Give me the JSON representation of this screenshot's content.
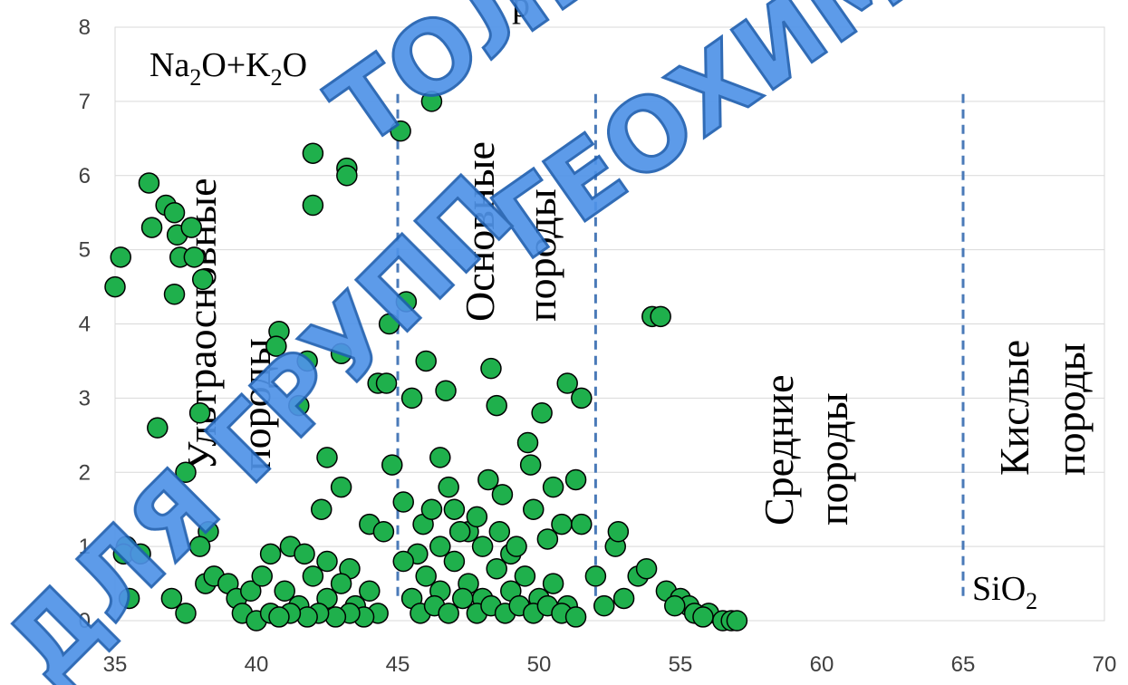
{
  "chart_data": {
    "type": "scatter",
    "title": "",
    "ylabel_main": "Na",
    "ylabel_sub1": "2",
    "ylabel_mid": "O+K",
    "ylabel_sub2": "2",
    "ylabel_end": "O",
    "xlabel_main": "SiO",
    "xlabel_sub": "2",
    "xlim": [
      35,
      70
    ],
    "ylim": [
      0,
      8
    ],
    "x_ticks": [
      35,
      40,
      45,
      50,
      55,
      60,
      65,
      70
    ],
    "y_ticks": [
      0,
      1,
      2,
      3,
      4,
      5,
      6,
      7,
      8
    ],
    "boundaries": [
      45,
      52,
      65
    ],
    "regions": [
      {
        "line1": "Ультраосновные",
        "line2": "породы"
      },
      {
        "line1": "Основные",
        "line2": "породы"
      },
      {
        "line1": "Средние",
        "line2": "породы"
      },
      {
        "line1": "Кислые",
        "line2": "породы"
      }
    ],
    "marker_color": "#1fb04c",
    "marker_edge": "#000000",
    "points": [
      [
        35.0,
        4.5
      ],
      [
        35.2,
        4.9
      ],
      [
        35.4,
        1.0
      ],
      [
        35.3,
        0.9
      ],
      [
        35.5,
        0.3
      ],
      [
        35.9,
        0.9
      ],
      [
        36.2,
        5.9
      ],
      [
        36.3,
        5.3
      ],
      [
        36.5,
        2.6
      ],
      [
        36.8,
        5.6
      ],
      [
        37.1,
        5.5
      ],
      [
        37.2,
        5.2
      ],
      [
        37.3,
        4.9
      ],
      [
        37.1,
        4.4
      ],
      [
        37.7,
        5.3
      ],
      [
        37.8,
        4.9
      ],
      [
        37.5,
        2.0
      ],
      [
        38.1,
        4.6
      ],
      [
        38.0,
        2.8
      ],
      [
        38.3,
        1.2
      ],
      [
        38.0,
        1.0
      ],
      [
        37.0,
        0.3
      ],
      [
        37.5,
        0.1
      ],
      [
        38.2,
        0.5
      ],
      [
        38.5,
        0.6
      ],
      [
        39.0,
        0.5
      ],
      [
        39.3,
        0.3
      ],
      [
        39.5,
        0.1
      ],
      [
        39.8,
        0.4
      ],
      [
        40.0,
        0.0
      ],
      [
        40.2,
        0.6
      ],
      [
        40.5,
        0.9
      ],
      [
        40.8,
        3.9
      ],
      [
        40.7,
        3.7
      ],
      [
        41.5,
        2.9
      ],
      [
        41.8,
        3.5
      ],
      [
        42.0,
        6.3
      ],
      [
        42.0,
        5.6
      ],
      [
        43.2,
        6.1
      ],
      [
        43.2,
        6.0
      ],
      [
        43.0,
        3.6
      ],
      [
        42.5,
        2.2
      ],
      [
        43.0,
        1.8
      ],
      [
        42.3,
        1.5
      ],
      [
        41.2,
        1.0
      ],
      [
        41.7,
        0.9
      ],
      [
        42.5,
        0.8
      ],
      [
        43.3,
        0.7
      ],
      [
        44.0,
        1.3
      ],
      [
        44.5,
        1.2
      ],
      [
        44.7,
        4.0
      ],
      [
        44.3,
        3.2
      ],
      [
        44.6,
        3.2
      ],
      [
        44.8,
        2.1
      ],
      [
        45.1,
        6.6
      ],
      [
        45.3,
        4.3
      ],
      [
        45.5,
        3.0
      ],
      [
        45.2,
        1.6
      ],
      [
        45.7,
        0.9
      ],
      [
        46.2,
        7.0
      ],
      [
        46.0,
        3.5
      ],
      [
        46.7,
        3.1
      ],
      [
        46.5,
        2.2
      ],
      [
        46.8,
        1.8
      ],
      [
        47.0,
        1.5
      ],
      [
        47.5,
        1.2
      ],
      [
        48.2,
        1.9
      ],
      [
        48.3,
        3.4
      ],
      [
        48.5,
        2.9
      ],
      [
        48.7,
        1.7
      ],
      [
        48.0,
        1.0
      ],
      [
        49.0,
        0.9
      ],
      [
        49.6,
        2.4
      ],
      [
        49.7,
        2.1
      ],
      [
        50.1,
        2.8
      ],
      [
        50.5,
        1.8
      ],
      [
        50.8,
        1.3
      ],
      [
        51.0,
        3.2
      ],
      [
        51.5,
        3.0
      ],
      [
        51.3,
        1.9
      ],
      [
        51.5,
        1.3
      ],
      [
        52.0,
        0.6
      ],
      [
        52.7,
        1.0
      ],
      [
        52.8,
        1.2
      ],
      [
        53.5,
        0.6
      ],
      [
        53.8,
        0.7
      ],
      [
        54.0,
        4.1
      ],
      [
        54.3,
        4.1
      ],
      [
        54.5,
        0.4
      ],
      [
        55.0,
        0.3
      ],
      [
        55.3,
        0.2
      ],
      [
        55.5,
        0.1
      ],
      [
        56.0,
        0.1
      ],
      [
        56.5,
        0.0
      ],
      [
        56.8,
        0.0
      ],
      [
        57.0,
        0.0
      ],
      [
        55.8,
        0.05
      ],
      [
        54.8,
        0.2
      ],
      [
        53.0,
        0.3
      ],
      [
        52.3,
        0.2
      ],
      [
        45.5,
        0.3
      ],
      [
        46.0,
        0.6
      ],
      [
        46.5,
        0.4
      ],
      [
        47.0,
        0.8
      ],
      [
        47.5,
        0.5
      ],
      [
        48.0,
        0.3
      ],
      [
        48.5,
        0.7
      ],
      [
        49.0,
        0.4
      ],
      [
        49.5,
        0.6
      ],
      [
        50.0,
        0.3
      ],
      [
        50.5,
        0.5
      ],
      [
        51.0,
        0.2
      ],
      [
        44.0,
        0.4
      ],
      [
        43.5,
        0.2
      ],
      [
        43.0,
        0.5
      ],
      [
        42.5,
        0.3
      ],
      [
        42.0,
        0.6
      ],
      [
        41.5,
        0.2
      ],
      [
        41.0,
        0.4
      ],
      [
        40.5,
        0.1
      ],
      [
        45.8,
        0.1
      ],
      [
        46.3,
        0.2
      ],
      [
        46.8,
        0.1
      ],
      [
        47.3,
        0.3
      ],
      [
        47.8,
        0.1
      ],
      [
        48.3,
        0.2
      ],
      [
        48.8,
        0.1
      ],
      [
        49.3,
        0.2
      ],
      [
        49.8,
        0.1
      ],
      [
        50.3,
        0.2
      ],
      [
        50.8,
        0.1
      ],
      [
        51.3,
        0.05
      ],
      [
        44.3,
        0.1
      ],
      [
        43.8,
        0.05
      ],
      [
        43.3,
        0.1
      ],
      [
        42.8,
        0.05
      ],
      [
        42.2,
        0.1
      ],
      [
        41.8,
        0.05
      ],
      [
        41.2,
        0.1
      ],
      [
        40.8,
        0.05
      ],
      [
        46.5,
        1.0
      ],
      [
        47.2,
        1.2
      ],
      [
        47.8,
        1.4
      ],
      [
        48.6,
        1.2
      ],
      [
        49.2,
        1.0
      ],
      [
        49.8,
        1.5
      ],
      [
        50.3,
        1.1
      ],
      [
        45.9,
        1.3
      ],
      [
        46.2,
        1.5
      ],
      [
        45.2,
        0.8
      ]
    ]
  },
  "watermark": {
    "line1": "ТОЛЬКО",
    "line2": "ГЕОХИМИЯ",
    "line3": "ДЛЯ ГРУПП",
    "title_fragment": "р",
    "color": "#4f93e8"
  }
}
